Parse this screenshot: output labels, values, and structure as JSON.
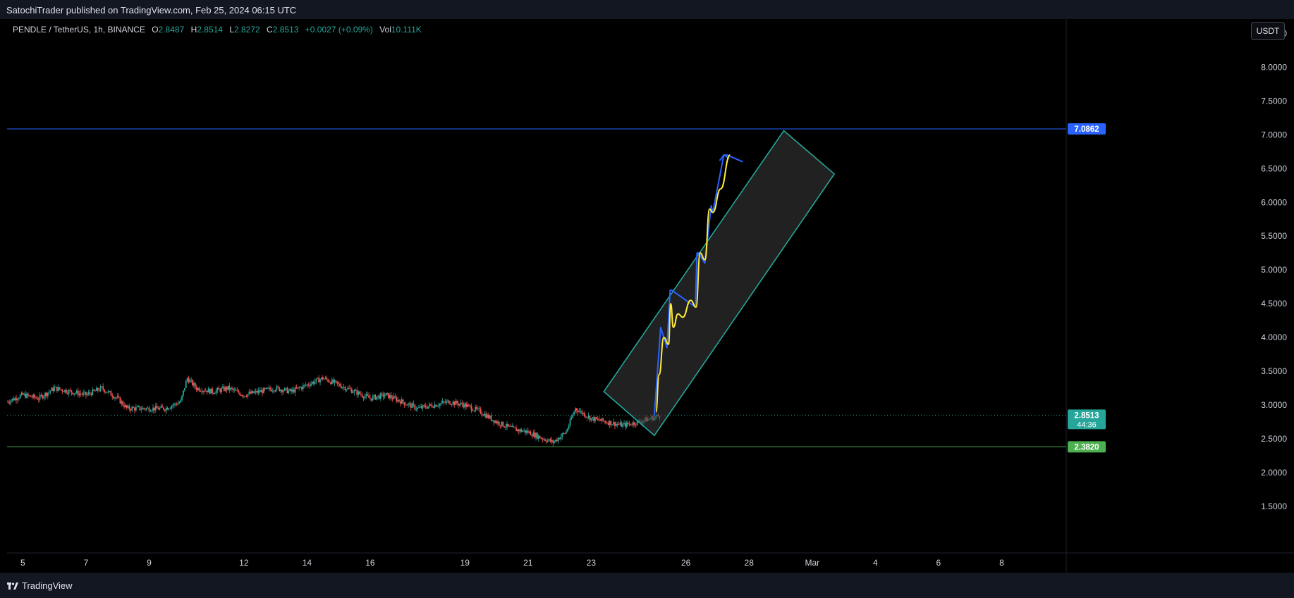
{
  "header": {
    "published_text": "SatochiTrader published on TradingView.com, Feb 25, 2024 06:15 UTC"
  },
  "legend": {
    "symbol": "PENDLE / TetherUS, 1h, BINANCE",
    "open_label": "O",
    "open": "2.8487",
    "high_label": "H",
    "high": "2.8514",
    "low_label": "L",
    "low": "2.8272",
    "close_label": "C",
    "close": "2.8513",
    "change": "+0.0027 (+0.09%)",
    "vol_label": "Vol",
    "volume": "10.111K"
  },
  "currency_button": "USDT",
  "footer": {
    "brand": "TradingView"
  },
  "colors": {
    "background": "#000000",
    "up": "#26a69a",
    "down": "#ef5350",
    "resistance_line": "#2962ff",
    "support_line": "#4caf50",
    "channel": "#26a69a",
    "blue_path": "#2962ff",
    "yellow_path": "#ffeb3b"
  },
  "chart_data": {
    "type": "candlestick",
    "symbol": "PENDLE / TetherUS",
    "interval": "1h",
    "exchange": "BINANCE",
    "y_axis_ticks": [
      "8.5000",
      "8.0000",
      "7.5000",
      "7.0000",
      "6.5000",
      "6.0000",
      "5.5000",
      "5.0000",
      "4.5000",
      "4.0000",
      "3.5000",
      "3.0000",
      "2.5000",
      "2.0000",
      "1.5000"
    ],
    "y_axis_tick_values": [
      8.5,
      8.0,
      7.5,
      7.0,
      6.5,
      6.0,
      5.5,
      5.0,
      4.5,
      4.0,
      3.5,
      3.0,
      2.5,
      2.0,
      1.5
    ],
    "ylim": [
      1.0,
      8.9
    ],
    "x_axis_ticks": [
      "5",
      "7",
      "9",
      "12",
      "14",
      "16",
      "19",
      "21",
      "23",
      "26",
      "28",
      "Mar",
      "4",
      "6",
      "8"
    ],
    "x_axis_tick_days": [
      5,
      7,
      9,
      12,
      14,
      16,
      19,
      21,
      23,
      26,
      28,
      30,
      32,
      34,
      36
    ],
    "xlim_days": [
      4.5,
      38
    ],
    "price_curve": {
      "days": [
        4.5,
        5.0,
        5.5,
        6.0,
        6.5,
        7.0,
        7.5,
        8.0,
        8.3,
        8.6,
        9.0,
        9.5,
        10.0,
        10.2,
        10.5,
        11.0,
        11.5,
        12.0,
        12.5,
        13.0,
        13.5,
        14.0,
        14.5,
        15.0,
        15.5,
        16.0,
        16.5,
        17.0,
        17.5,
        18.0,
        18.5,
        19.0,
        19.5,
        20.0,
        20.5,
        21.0,
        21.5,
        21.8,
        22.2,
        22.5,
        23.0,
        23.5,
        24.0,
        24.5,
        25.0,
        25.2
      ],
      "prices": [
        3.05,
        3.15,
        3.1,
        3.25,
        3.2,
        3.15,
        3.25,
        3.1,
        2.95,
        2.95,
        2.95,
        2.95,
        3.05,
        3.4,
        3.25,
        3.2,
        3.25,
        3.15,
        3.2,
        3.25,
        3.2,
        3.3,
        3.4,
        3.3,
        3.2,
        3.1,
        3.15,
        3.05,
        2.95,
        3.0,
        3.05,
        3.0,
        2.9,
        2.75,
        2.65,
        2.6,
        2.5,
        2.45,
        2.6,
        2.95,
        2.8,
        2.75,
        2.7,
        2.75,
        2.82,
        2.85
      ]
    },
    "last_price": {
      "value": 2.8513,
      "label": "2.8513",
      "countdown": "44:36"
    },
    "horizontal_lines": [
      {
        "name": "resistance",
        "value": 7.0862,
        "label": "7.0862"
      },
      {
        "name": "support",
        "value": 2.382,
        "label": "2.3820"
      }
    ],
    "channel": {
      "corners": [
        {
          "day": 23.4,
          "price": 3.2
        },
        {
          "day": 29.1,
          "price": 7.06
        },
        {
          "day": 30.7,
          "price": 6.42
        },
        {
          "day": 25.0,
          "price": 2.55
        }
      ]
    },
    "blue_projection": {
      "days": [
        25.0,
        25.2,
        25.4,
        25.5,
        25.55,
        26.3,
        26.35,
        26.4,
        26.6,
        26.8,
        26.85,
        27.2,
        27.3,
        27.8
      ],
      "prices": [
        2.85,
        4.15,
        3.85,
        4.7,
        4.7,
        4.45,
        5.25,
        5.25,
        5.1,
        5.95,
        5.85,
        6.7,
        6.7,
        6.6
      ]
    },
    "yellow_projection": {
      "days": [
        25.05,
        25.15,
        25.3,
        25.45,
        25.52,
        25.6,
        25.75,
        25.9,
        26.15,
        26.32,
        26.45,
        26.6,
        26.75,
        26.85,
        27.1,
        27.4
      ],
      "prices": [
        2.9,
        3.45,
        4.0,
        3.9,
        4.5,
        4.15,
        4.35,
        4.3,
        4.55,
        4.45,
        5.25,
        5.15,
        5.9,
        5.85,
        6.2,
        6.7
      ]
    }
  }
}
